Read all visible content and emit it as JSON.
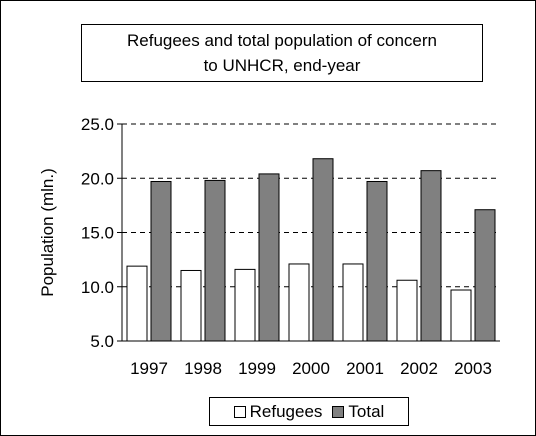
{
  "chart_data": {
    "type": "bar",
    "title": "Refugees and total population of concern to UNHCR, end-year",
    "title_lines": [
      "Refugees and total population of concern",
      "to UNHCR, end-year"
    ],
    "xlabel": "",
    "ylabel": "Population (mln.)",
    "categories": [
      "1997",
      "1998",
      "1999",
      "2000",
      "2001",
      "2002",
      "2003"
    ],
    "series": [
      {
        "name": "Refugees",
        "values": [
          11.9,
          11.5,
          11.6,
          12.1,
          12.1,
          10.6,
          9.7
        ],
        "color": "#ffffff"
      },
      {
        "name": "Total",
        "values": [
          19.7,
          19.8,
          20.4,
          21.8,
          19.7,
          20.7,
          17.1
        ],
        "color": "#808080"
      }
    ],
    "ylim": [
      5.0,
      25.0
    ],
    "yticks": [
      "5.0",
      "10.0",
      "15.0",
      "20.0",
      "25.0"
    ],
    "grid": "dashed horizontal",
    "legend_position": "bottom"
  }
}
